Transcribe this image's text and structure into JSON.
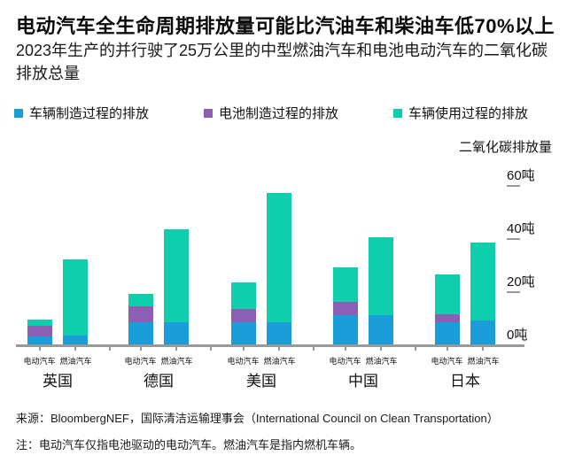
{
  "header": {
    "title": "电动汽车全生命周期排放量可能比汽油车和柴油车低70%以上",
    "subtitle": "2023年生产的并行驶了25万公里的中型燃油汽车和电池电动汽车的二氧化碳排放总量"
  },
  "legend": {
    "items": [
      {
        "key": "vehicle",
        "label": "车辆制造过程的排放",
        "color": "#1b9dd9"
      },
      {
        "key": "battery",
        "label": "电池制造过程的排放",
        "color": "#8c5fb4"
      },
      {
        "key": "use",
        "label": "车辆使用过程的排放",
        "color": "#0fceac"
      }
    ]
  },
  "colors": {
    "vehicle": "#1b9dd9",
    "battery": "#8c5fb4",
    "use": "#0fceac",
    "axis": "#999999"
  },
  "chart_data": {
    "type": "bar",
    "stacked": true,
    "axis_title": "二氧化碳排放量",
    "unit": "吨",
    "ylim": [
      0,
      62
    ],
    "grid": false,
    "legend_position": "top",
    "y_ticks": [
      {
        "label": "60吨",
        "value": 60
      },
      {
        "label": "40吨",
        "value": 40
      },
      {
        "label": "20吨",
        "value": 20
      },
      {
        "label": "0吨",
        "value": 0
      }
    ],
    "bar_labels": [
      "电动汽车",
      "燃油汽车"
    ],
    "series_names": [
      "车辆制造过程的排放",
      "电池制造过程的排放",
      "车辆使用过程的排放"
    ],
    "groups": [
      {
        "key": "uk",
        "country": "英国",
        "ev": {
          "vehicle": 3,
          "battery": 4,
          "use": 2.5
        },
        "fuel": {
          "vehicle": 3.5,
          "battery": 0,
          "use": 28.5
        }
      },
      {
        "key": "germany",
        "country": "德国",
        "ev": {
          "vehicle": 8.5,
          "battery": 6,
          "use": 4.5
        },
        "fuel": {
          "vehicle": 8.5,
          "battery": 0,
          "use": 35
        }
      },
      {
        "key": "usa",
        "country": "美国",
        "ev": {
          "vehicle": 8.5,
          "battery": 5,
          "use": 10
        },
        "fuel": {
          "vehicle": 8.5,
          "battery": 0,
          "use": 48.5
        }
      },
      {
        "key": "china",
        "country": "中国",
        "ev": {
          "vehicle": 11,
          "battery": 5,
          "use": 13
        },
        "fuel": {
          "vehicle": 11,
          "battery": 0,
          "use": 29.5
        }
      },
      {
        "key": "japan",
        "country": "日本",
        "ev": {
          "vehicle": 8.5,
          "battery": 3,
          "use": 15
        },
        "fuel": {
          "vehicle": 9,
          "battery": 0,
          "use": 29.5
        }
      }
    ]
  },
  "footer": {
    "source": "来源：BloombergNEF，国际清洁运输理事会（International Council on Clean Transportation）",
    "note": "注：电动汽车仅指电池驱动的电动汽车。燃油汽车是指内燃机车辆。"
  }
}
